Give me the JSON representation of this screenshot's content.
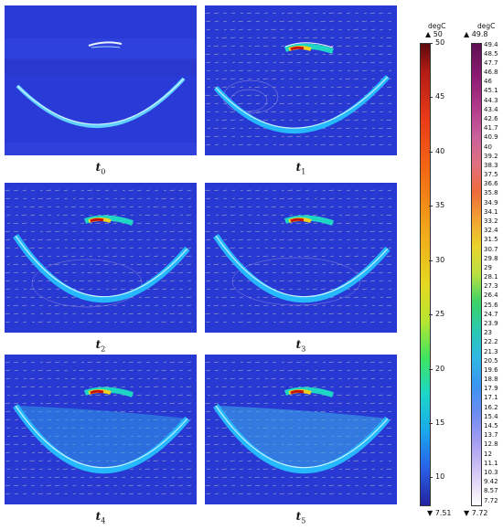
{
  "panels": [
    {
      "letter": "t",
      "sub": "0"
    },
    {
      "letter": "t",
      "sub": "1"
    },
    {
      "letter": "t",
      "sub": "2"
    },
    {
      "letter": "t",
      "sub": "3"
    },
    {
      "letter": "t",
      "sub": "4"
    },
    {
      "letter": "t",
      "sub": "5"
    }
  ],
  "colorbar_left": {
    "unit": "degC",
    "max_label": "▲ 50",
    "min_label": "▼ 7.51",
    "ticks": [
      "50",
      "45",
      "40",
      "35",
      "30",
      "25",
      "20",
      "15",
      "10"
    ]
  },
  "colorbar_right": {
    "unit": "degC",
    "max_label": "▲ 49.8",
    "min_label": "▼ 7.72",
    "ticks": [
      "49.4",
      "48.5",
      "47.7",
      "46.8",
      "46",
      "45.1",
      "44.3",
      "43.4",
      "42.6",
      "41.7",
      "40.9",
      "40",
      "39.2",
      "38.3",
      "37.5",
      "36.6",
      "35.8",
      "34.9",
      "34.1",
      "33.2",
      "32.4",
      "31.5",
      "30.7",
      "29.8",
      "29",
      "28.1",
      "27.3",
      "26.4",
      "25.6",
      "24.7",
      "23.9",
      "23",
      "22.2",
      "21.3",
      "20.5",
      "19.6",
      "18.8",
      "17.9",
      "17.1",
      "16.2",
      "15.4",
      "14.5",
      "13.7",
      "12.8",
      "12",
      "11.1",
      "10.3",
      "9.42",
      "8.57",
      "7.72"
    ]
  },
  "colors": {
    "background": "#2b3ad8",
    "hot": "#c8140f"
  }
}
